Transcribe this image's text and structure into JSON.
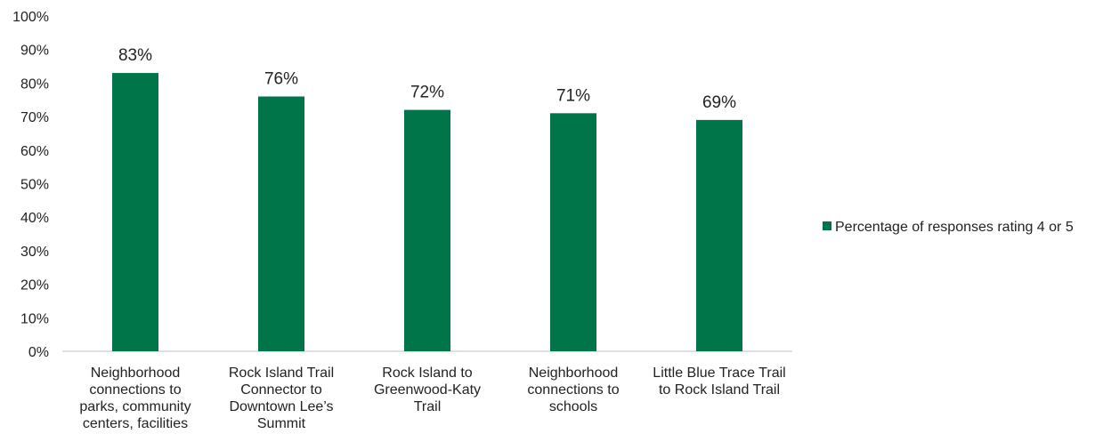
{
  "chart_data": {
    "type": "bar",
    "categories": [
      [
        "Neighborhood",
        "connections to",
        "parks, community",
        "centers, facilities"
      ],
      [
        "Rock Island Trail",
        "Connector to",
        "Downtown Lee’s",
        "Summit"
      ],
      [
        "Rock Island to",
        "Greenwood-Katy",
        "Trail"
      ],
      [
        "Neighborhood",
        "connections to",
        "schools"
      ],
      [
        "Little Blue Trace Trail",
        "to Rock Island Trail"
      ]
    ],
    "series": [
      {
        "name": "Percentage of responses rating 4 or 5",
        "values": [
          83,
          76,
          72,
          71,
          69
        ],
        "labels": [
          "83%",
          "76%",
          "72%",
          "71%",
          "69%"
        ],
        "color": "#00754A"
      }
    ],
    "y_ticks": [
      "0%",
      "10%",
      "20%",
      "30%",
      "40%",
      "50%",
      "60%",
      "70%",
      "80%",
      "90%",
      "100%"
    ],
    "ylim": [
      0,
      100
    ],
    "grid": false,
    "legend_position": "right"
  }
}
